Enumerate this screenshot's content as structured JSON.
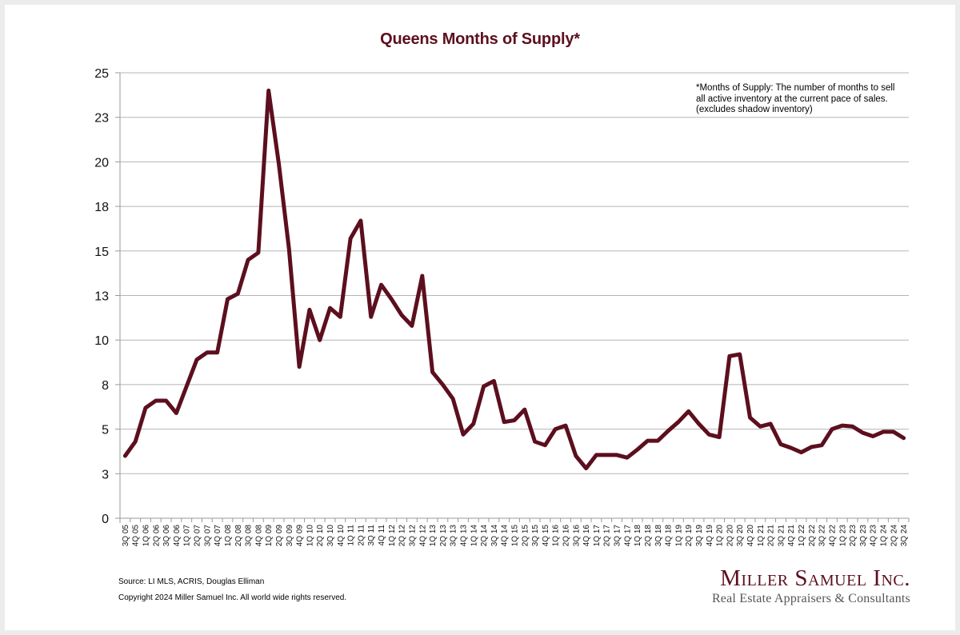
{
  "chart_data": {
    "type": "line",
    "title": "Queens Months of Supply*",
    "xlabel": "",
    "ylabel": "",
    "ylim": [
      0,
      25
    ],
    "yticks": [
      0,
      2.5,
      5,
      7.5,
      10,
      12.5,
      15,
      17.5,
      20,
      22.5,
      25
    ],
    "ytick_labels": [
      "0",
      "3",
      "5",
      "8",
      "10",
      "13",
      "15",
      "18",
      "20",
      "23",
      "25"
    ],
    "grid": true,
    "legend": "none",
    "line_color": "#5c0f1e",
    "categories": [
      "3Q 05",
      "4Q 05",
      "1Q 06",
      "2Q 06",
      "3Q 06",
      "4Q 06",
      "1Q 07",
      "2Q 07",
      "3Q 07",
      "4Q 07",
      "1Q 08",
      "2Q 08",
      "3Q 08",
      "4Q 08",
      "1Q 09",
      "2Q 09",
      "3Q 09",
      "4Q 09",
      "1Q 10",
      "2Q 10",
      "3Q 10",
      "4Q 10",
      "1Q 11",
      "2Q 11",
      "3Q 11",
      "4Q 11",
      "1Q 12",
      "2Q 12",
      "3Q 12",
      "4Q 12",
      "1Q 13",
      "2Q 13",
      "3Q 13",
      "4Q 13",
      "1Q 14",
      "2Q 14",
      "3Q 14",
      "4Q 14",
      "1Q 15",
      "2Q 15",
      "3Q 15",
      "4Q 15",
      "1Q 16",
      "2Q 16",
      "3Q 16",
      "4Q 16",
      "1Q 17",
      "2Q 17",
      "3Q 17",
      "4Q 17",
      "1Q 18",
      "2Q 18",
      "3Q 18",
      "4Q 18",
      "1Q 19",
      "2Q 19",
      "3Q 19",
      "4Q 19",
      "1Q 20",
      "2Q 20",
      "3Q 20",
      "4Q 20",
      "1Q 21",
      "2Q 21",
      "3Q 21",
      "4Q 21",
      "1Q 22",
      "2Q 22",
      "3Q 22",
      "4Q 22",
      "1Q 23",
      "2Q 23",
      "3Q 23",
      "4Q 23",
      "1Q 24",
      "2Q 24",
      "3Q 24"
    ],
    "series": [
      {
        "name": "Months of Supply",
        "values": [
          3.5,
          4.3,
          6.2,
          6.6,
          6.6,
          5.9,
          7.4,
          8.9,
          9.3,
          9.3,
          12.3,
          12.6,
          14.5,
          14.9,
          24.0,
          19.9,
          15.1,
          8.5,
          11.7,
          10.0,
          11.8,
          11.3,
          15.7,
          16.7,
          11.3,
          13.1,
          12.3,
          11.4,
          10.8,
          13.6,
          8.2,
          7.5,
          6.7,
          4.7,
          5.3,
          7.4,
          7.7,
          5.4,
          5.5,
          6.1,
          4.3,
          4.1,
          5.0,
          5.2,
          3.5,
          2.8,
          3.55,
          3.55,
          3.55,
          3.4,
          3.85,
          4.35,
          4.35,
          4.9,
          5.4,
          6.0,
          5.3,
          4.7,
          4.55,
          9.1,
          9.2,
          5.65,
          5.15,
          5.3,
          4.15,
          3.95,
          3.7,
          4.0,
          4.1,
          5.0,
          5.2,
          5.15,
          4.8,
          4.6,
          4.85,
          4.85,
          4.5
        ]
      }
    ],
    "annotations": [
      "*Months of Supply: The number of months to sell",
      "all active inventory at the current pace of sales.",
      "(excludes shadow inventory)"
    ]
  },
  "footer": {
    "source": "Source: LI MLS, ACRIS, Douglas Elliman",
    "copyright": "Copyright 2024 Miller Samuel Inc.  All world wide rights reserved."
  },
  "logo": {
    "name": "Miller Samuel Inc.",
    "tagline": "Real Estate Appraisers & Consultants"
  }
}
